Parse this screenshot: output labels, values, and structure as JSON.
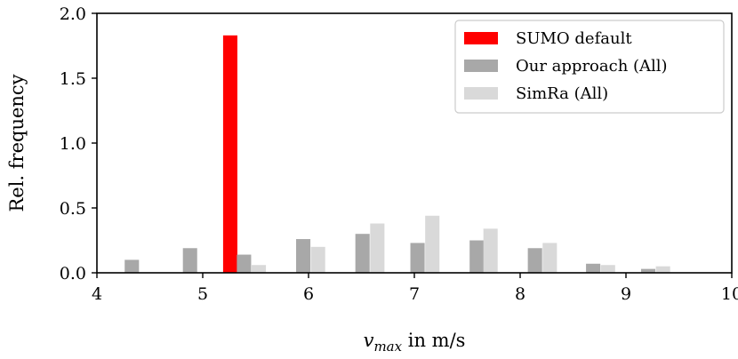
{
  "chart_data": {
    "type": "bar",
    "title": "",
    "xlabel_var": "v",
    "xlabel_sub": "max",
    "xlabel_rest": " in m/s",
    "ylabel": "Rel. frequency",
    "xlim": [
      4,
      10
    ],
    "ylim": [
      0,
      2.0
    ],
    "xticks": [
      "4",
      "5",
      "6",
      "7",
      "8",
      "9",
      "10"
    ],
    "yticks": [
      "0.0",
      "0.5",
      "1.0",
      "1.5",
      "2.0"
    ],
    "grid": false,
    "legend_position": "top-right",
    "bar_width": 0.135,
    "series": [
      {
        "name": "SUMO default",
        "color": "#ff0000",
        "x": [
          5.26
        ],
        "values": [
          1.83
        ]
      },
      {
        "name": "Our approach (All)",
        "color": "#a8a8a8",
        "x": [
          4.33,
          4.88,
          5.39,
          5.95,
          6.51,
          7.03,
          7.59,
          8.14,
          8.69,
          9.21
        ],
        "values": [
          0.1,
          0.19,
          0.14,
          0.26,
          0.3,
          0.23,
          0.25,
          0.19,
          0.07,
          0.03
        ]
      },
      {
        "name": "SimRa (All)",
        "color": "#d9d9d9",
        "x": [
          5.53,
          6.09,
          6.65,
          7.17,
          7.72,
          8.28,
          8.83,
          9.35
        ],
        "values": [
          0.06,
          0.2,
          0.38,
          0.44,
          0.34,
          0.23,
          0.06,
          0.05
        ]
      }
    ]
  }
}
